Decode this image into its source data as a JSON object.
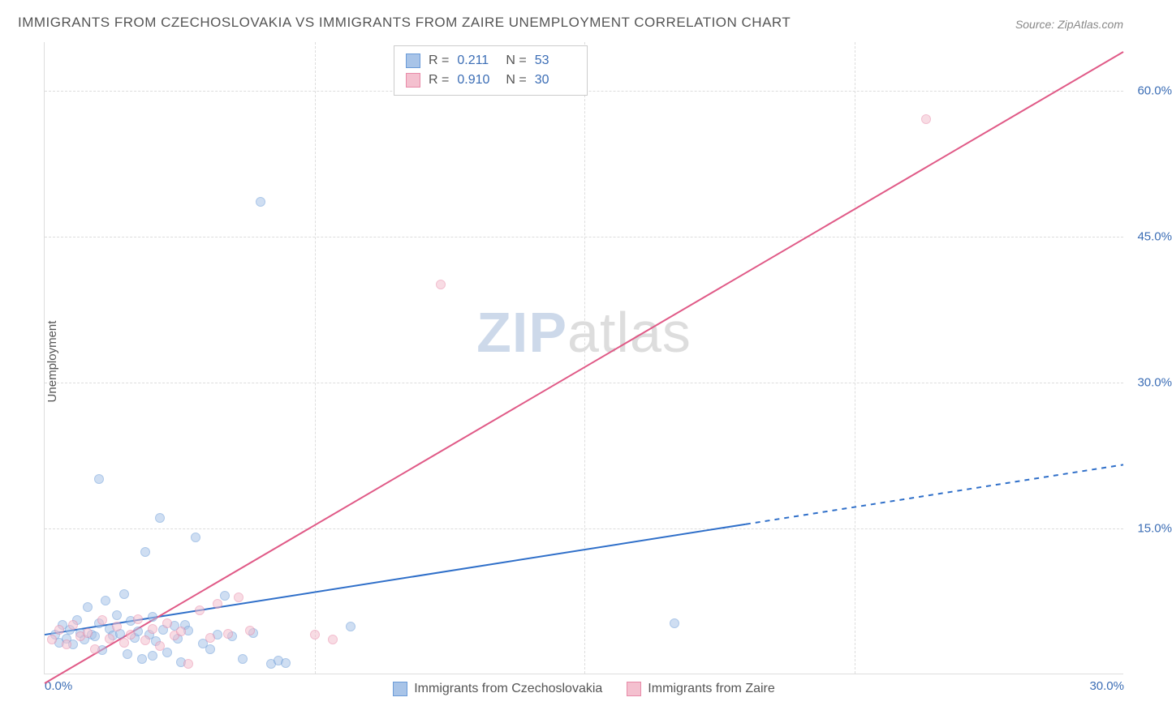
{
  "title": "IMMIGRANTS FROM CZECHOSLOVAKIA VS IMMIGRANTS FROM ZAIRE UNEMPLOYMENT CORRELATION CHART",
  "source_label": "Source: ",
  "source_name": "ZipAtlas.com",
  "ylabel": "Unemployment",
  "watermark_a": "ZIP",
  "watermark_b": "atlas",
  "chart": {
    "type": "scatter-with-trend",
    "background_color": "#ffffff",
    "grid_color": "#dddddd",
    "grid_dash": "4,4",
    "xlim": [
      0,
      30
    ],
    "ylim": [
      0,
      65
    ],
    "yticks": [
      15,
      30,
      45,
      60
    ],
    "ytick_labels": [
      "15.0%",
      "30.0%",
      "45.0%",
      "60.0%"
    ],
    "xticks": [
      0,
      30
    ],
    "xtick_labels": [
      "0.0%",
      "30.0%"
    ],
    "xgrid_positions": [
      7.5,
      15,
      22.5
    ],
    "point_radius": 6,
    "point_opacity": 0.55,
    "tick_label_color": "#3b6db5",
    "axis_label_color": "#555555"
  },
  "series": [
    {
      "id": "czech",
      "label": "Immigrants from Czechoslovakia",
      "color_fill": "#a8c4e8",
      "color_stroke": "#6a9bd8",
      "r_value": "0.211",
      "n_value": "53",
      "trend": {
        "x1": 0,
        "y1": 4.0,
        "x2": 30,
        "y2": 21.5,
        "solid_until_x": 19.5,
        "color": "#2f6fc9",
        "width": 2
      },
      "points": [
        [
          0.3,
          4.0
        ],
        [
          0.4,
          3.2
        ],
        [
          0.5,
          5.0
        ],
        [
          0.6,
          3.6
        ],
        [
          0.7,
          4.5
        ],
        [
          0.8,
          3.0
        ],
        [
          0.9,
          5.5
        ],
        [
          1.0,
          4.2
        ],
        [
          1.1,
          3.5
        ],
        [
          1.2,
          6.8
        ],
        [
          1.3,
          4.0
        ],
        [
          1.4,
          3.8
        ],
        [
          1.5,
          5.2
        ],
        [
          1.6,
          2.4
        ],
        [
          1.7,
          7.5
        ],
        [
          1.8,
          4.6
        ],
        [
          1.9,
          3.9
        ],
        [
          2.0,
          6.0
        ],
        [
          2.1,
          4.1
        ],
        [
          2.2,
          8.2
        ],
        [
          2.3,
          2.0
        ],
        [
          2.4,
          5.4
        ],
        [
          2.5,
          3.7
        ],
        [
          2.6,
          4.3
        ],
        [
          2.7,
          1.5
        ],
        [
          2.8,
          12.5
        ],
        [
          2.9,
          4.0
        ],
        [
          3.0,
          5.8
        ],
        [
          3.1,
          3.3
        ],
        [
          3.2,
          16.0
        ],
        [
          3.3,
          4.5
        ],
        [
          3.4,
          2.2
        ],
        [
          1.5,
          20.0
        ],
        [
          3.6,
          4.9
        ],
        [
          3.7,
          3.6
        ],
        [
          3.8,
          1.2
        ],
        [
          3.9,
          5.0
        ],
        [
          4.0,
          4.4
        ],
        [
          4.2,
          14.0
        ],
        [
          4.4,
          3.1
        ],
        [
          4.6,
          2.5
        ],
        [
          4.8,
          4.0
        ],
        [
          5.0,
          8.0
        ],
        [
          5.2,
          3.8
        ],
        [
          5.5,
          1.5
        ],
        [
          5.8,
          4.2
        ],
        [
          6.3,
          1.0
        ],
        [
          6.5,
          1.3
        ],
        [
          6.7,
          1.1
        ],
        [
          6.0,
          48.5
        ],
        [
          8.5,
          4.8
        ],
        [
          17.5,
          5.2
        ],
        [
          3.0,
          1.8
        ]
      ]
    },
    {
      "id": "zaire",
      "label": "Immigrants from Zaire",
      "color_fill": "#f4c0cf",
      "color_stroke": "#e88aa8",
      "r_value": "0.910",
      "n_value": "30",
      "trend": {
        "x1": 0,
        "y1": -1.0,
        "x2": 30,
        "y2": 64.0,
        "solid_until_x": 30,
        "color": "#e05a87",
        "width": 2
      },
      "points": [
        [
          0.2,
          3.5
        ],
        [
          0.4,
          4.5
        ],
        [
          0.6,
          3.0
        ],
        [
          0.8,
          5.0
        ],
        [
          1.0,
          3.8
        ],
        [
          1.2,
          4.2
        ],
        [
          1.4,
          2.5
        ],
        [
          1.6,
          5.5
        ],
        [
          1.8,
          3.6
        ],
        [
          2.0,
          4.8
        ],
        [
          2.2,
          3.2
        ],
        [
          2.4,
          4.0
        ],
        [
          2.6,
          5.6
        ],
        [
          2.8,
          3.4
        ],
        [
          3.0,
          4.6
        ],
        [
          3.2,
          2.8
        ],
        [
          3.4,
          5.2
        ],
        [
          3.6,
          3.9
        ],
        [
          3.8,
          4.3
        ],
        [
          4.0,
          1.0
        ],
        [
          4.3,
          6.5
        ],
        [
          4.6,
          3.7
        ],
        [
          4.8,
          7.2
        ],
        [
          5.1,
          4.1
        ],
        [
          5.4,
          7.8
        ],
        [
          5.7,
          4.4
        ],
        [
          7.5,
          4.0
        ],
        [
          8.0,
          3.5
        ],
        [
          11.0,
          40.0
        ],
        [
          24.5,
          57.0
        ]
      ]
    }
  ],
  "legend_top": {
    "r_label": "R  =",
    "n_label": "N  ="
  }
}
